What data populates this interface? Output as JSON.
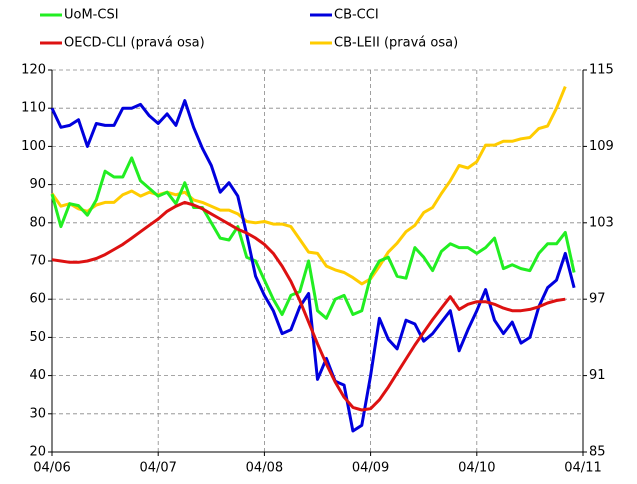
{
  "chart_data": {
    "type": "line",
    "categories": [
      "04/06",
      null,
      null,
      null,
      null,
      null,
      null,
      null,
      null,
      null,
      null,
      null,
      "04/07",
      null,
      null,
      null,
      null,
      null,
      null,
      null,
      null,
      null,
      null,
      null,
      "04/08",
      null,
      null,
      null,
      null,
      null,
      null,
      null,
      null,
      null,
      null,
      null,
      "04/09",
      null,
      null,
      null,
      null,
      null,
      null,
      null,
      null,
      null,
      null,
      null,
      "04/10",
      null,
      null,
      null,
      null,
      null,
      null,
      null,
      null,
      null,
      null,
      null,
      "04/11"
    ],
    "ylim": [
      20,
      120
    ],
    "yticks": [
      20,
      30,
      40,
      50,
      60,
      70,
      80,
      90,
      100,
      110,
      120
    ],
    "y2lim": [
      85,
      115
    ],
    "y2ticks": [
      85,
      91,
      97,
      103,
      109,
      115
    ],
    "grid": true,
    "legend": "top",
    "series": [
      {
        "name": "UoM-CSI",
        "color": "#22ee22",
        "values": [
          87.5,
          79,
          85,
          84.5,
          82,
          86,
          93.5,
          92,
          92,
          97,
          91,
          89,
          87,
          88,
          85,
          90.5,
          84,
          84,
          80,
          76,
          75.5,
          79,
          71,
          70,
          65,
          60,
          56,
          61,
          62,
          70,
          57,
          55,
          60,
          61,
          56,
          57,
          66,
          70,
          71,
          66,
          65.5,
          73.5,
          71,
          67.5,
          72.5,
          74.5,
          73.5,
          73.5,
          72,
          73.5,
          76,
          68,
          69,
          68,
          67.5,
          72,
          74.5,
          74.5,
          77.5,
          67,
          null
        ]
      },
      {
        "name": "CB-CCI",
        "color": "#0000dd",
        "values": [
          110,
          105,
          105.5,
          107,
          100,
          106,
          105.5,
          105.5,
          110,
          110,
          111,
          108,
          106,
          108.5,
          105.5,
          112,
          105,
          99.5,
          95,
          88,
          90.5,
          87,
          77,
          66,
          61,
          57,
          51,
          52,
          58,
          61.5,
          39,
          44.5,
          38.5,
          37.5,
          25.5,
          27,
          40,
          55,
          49.5,
          47,
          54.5,
          53.5,
          49,
          51,
          54,
          57,
          46.5,
          52,
          57,
          62.5,
          54.5,
          51,
          54,
          48.5,
          50,
          58,
          63,
          65,
          72,
          63,
          null
        ]
      },
      {
        "name": "OECD-CLI (pravá osa)",
        "color": "#dd1111",
        "axis": "y2",
        "values": [
          100.1,
          100.0,
          99.9,
          99.9,
          100.0,
          100.2,
          100.5,
          100.9,
          101.3,
          101.8,
          102.3,
          102.8,
          103.3,
          103.9,
          104.3,
          104.6,
          104.4,
          104.1,
          103.7,
          103.3,
          102.9,
          102.5,
          102.2,
          101.8,
          101.3,
          100.6,
          99.6,
          98.4,
          96.9,
          95.2,
          93.5,
          91.9,
          90.5,
          89.3,
          88.5,
          88.3,
          88.4,
          89.1,
          90.1,
          91.2,
          92.3,
          93.4,
          94.4,
          95.4,
          96.3,
          97.2,
          96.2,
          96.6,
          96.8,
          96.8,
          96.6,
          96.3,
          96.1,
          96.1,
          96.2,
          96.4,
          96.7,
          96.9,
          97.0,
          null,
          null
        ]
      },
      {
        "name": "CB-LEII (pravá osa)",
        "color": "#ffcc00",
        "axis": "y2",
        "values": [
          105.3,
          104.3,
          104.5,
          104.1,
          103.9,
          104.4,
          104.6,
          104.6,
          105.2,
          105.5,
          105.1,
          105.4,
          105.2,
          105.4,
          105.2,
          105.4,
          104.8,
          104.6,
          104.3,
          104.0,
          104.0,
          103.7,
          103.1,
          103.0,
          103.1,
          102.9,
          102.9,
          102.7,
          101.7,
          100.7,
          100.6,
          99.6,
          99.3,
          99.1,
          98.7,
          98.2,
          98.6,
          99.6,
          100.7,
          101.4,
          102.3,
          102.8,
          103.8,
          104.2,
          105.3,
          106.3,
          107.5,
          107.3,
          107.8,
          109.1,
          109.1,
          109.4,
          109.4,
          109.6,
          109.7,
          110.4,
          110.6,
          112.0,
          113.7,
          null,
          null
        ]
      }
    ]
  }
}
